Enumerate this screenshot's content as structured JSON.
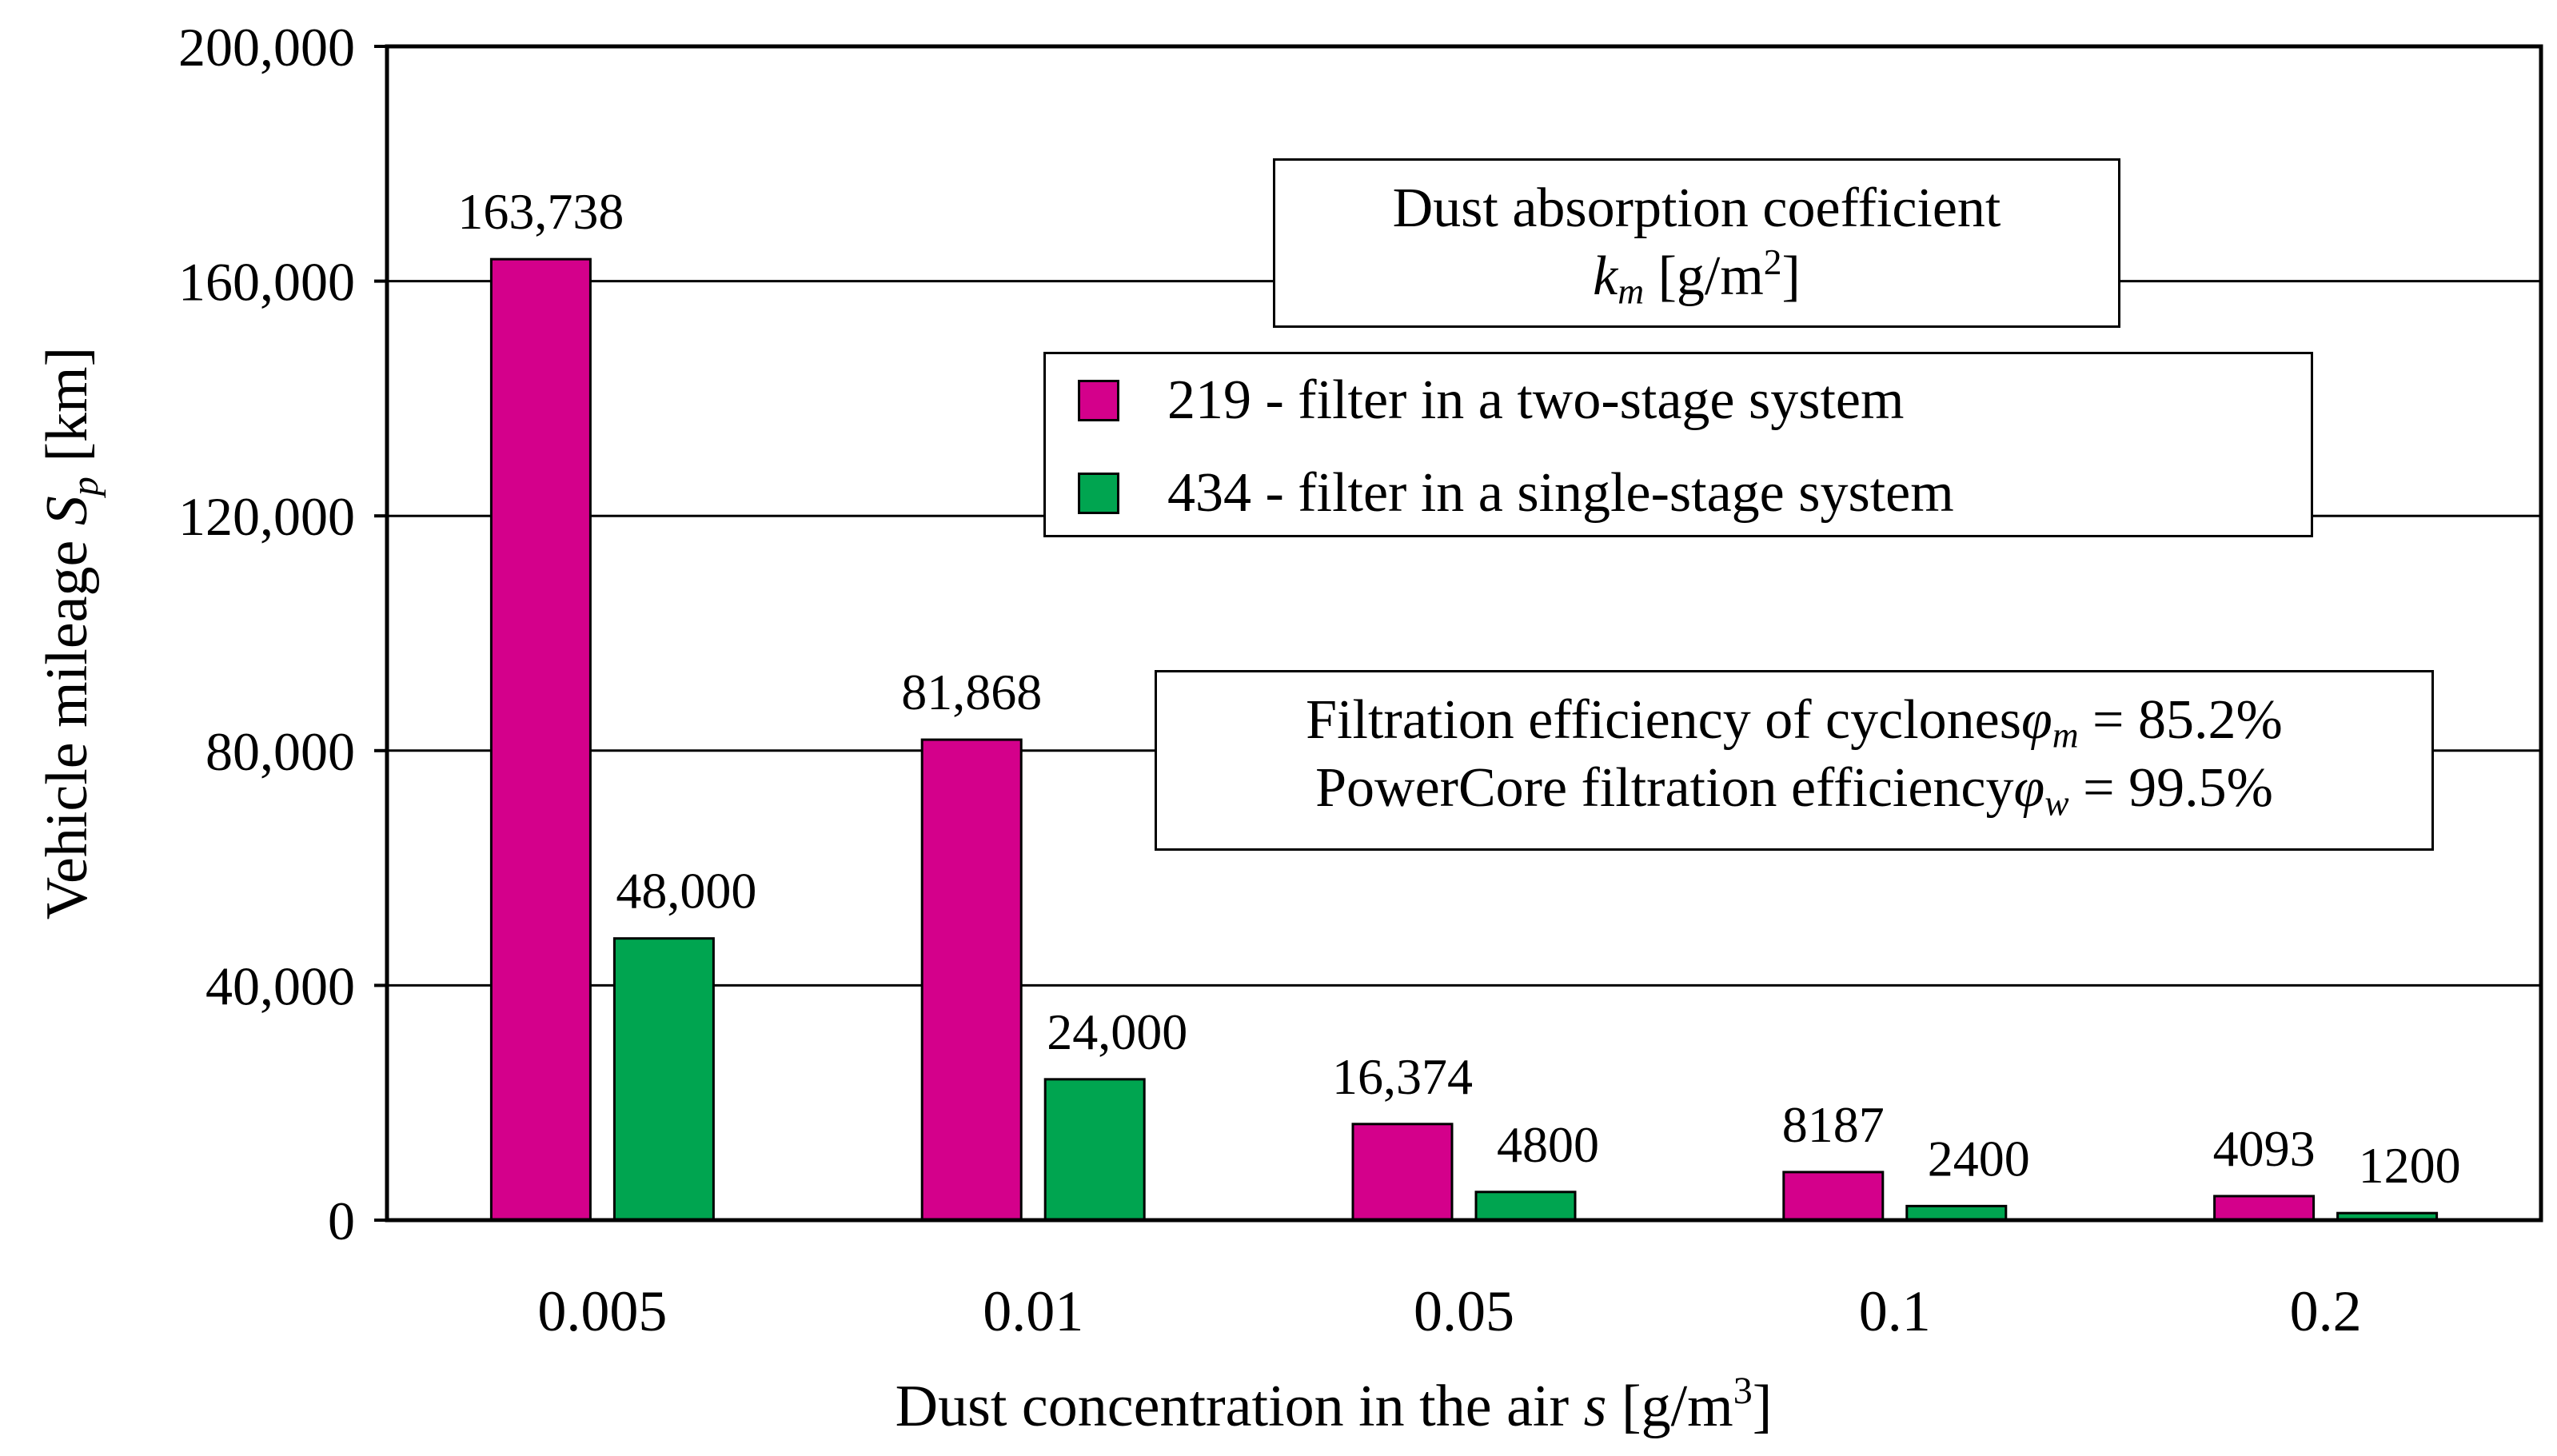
{
  "chart_data": {
    "type": "bar",
    "categories": [
      "0.005",
      "0.01",
      "0.05",
      "0.1",
      "0.2"
    ],
    "series": [
      {
        "name": "219 - filter in a two-stage system",
        "color": "#d4008b",
        "values": [
          163738,
          81868,
          16374,
          8187,
          4093
        ],
        "labels": [
          "163,738",
          "81,868",
          "16,374",
          "8187",
          "4093"
        ]
      },
      {
        "name": "434 - filter in a single-stage system",
        "color": "#00a550",
        "values": [
          48000,
          24000,
          4800,
          2400,
          1200
        ],
        "labels": [
          "48,000",
          "24,000",
          "4800",
          "2400",
          "1200"
        ]
      }
    ],
    "ylim": [
      0,
      200000
    ],
    "yticks": [
      0,
      40000,
      80000,
      120000,
      160000,
      200000
    ],
    "ytick_labels": [
      "0",
      "40,000",
      "80,000",
      "120,000",
      "160,000",
      "200,000"
    ],
    "ylabel": {
      "text": "Vehicle mileage ",
      "var": "S",
      "sub": "p",
      "unit": " [km]"
    },
    "xlabel": {
      "text": "Dust concentration in the air ",
      "var": "s",
      "unit_pre": " [g/m",
      "sup": "3",
      "unit_post": "]"
    },
    "legend_title": {
      "line1": "Dust absorption coefficient",
      "var": "k",
      "sub": "m",
      "unit_pre": " [g/m",
      "sup": "2",
      "unit_post": "]"
    },
    "legend_placement": "top-right",
    "grid": true
  },
  "annotation": {
    "line1": {
      "text": "Filtration efficiency of cyclones",
      "var": "φ",
      "sub": "m",
      "value": " = 85.2%"
    },
    "line2": {
      "text": "PowerCore filtration efficiency",
      "var": "φ",
      "sub": "w",
      "value": " = 99.5%"
    }
  }
}
